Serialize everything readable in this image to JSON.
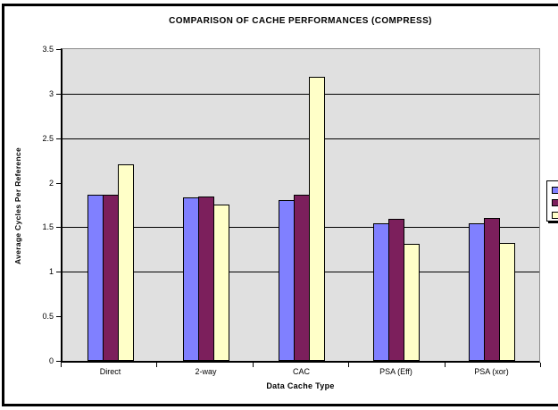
{
  "chart_data": {
    "type": "bar",
    "title": "COMPARISON OF CACHE PERFORMANCES (COMPRESS)",
    "xlabel": "Data Cache Type",
    "ylabel": "Average Cycles Per Reference",
    "categories": [
      "Direct",
      "2-way",
      "CAC",
      "PSA (Eff)",
      "PSA (xor)"
    ],
    "series": [
      {
        "name": "",
        "color": "#8080ff",
        "values": [
          1.87,
          1.84,
          1.81,
          1.54,
          1.54
        ]
      },
      {
        "name": "",
        "color": "#7c1f5c",
        "values": [
          1.87,
          1.85,
          1.87,
          1.59,
          1.6
        ]
      },
      {
        "name": "",
        "color": "#ffffc8",
        "values": [
          2.21,
          1.76,
          3.19,
          1.31,
          1.32
        ]
      }
    ],
    "ylim": [
      0,
      3.5
    ],
    "yticks": [
      0,
      0.5,
      1,
      1.5,
      2,
      2.5,
      3,
      3.5
    ],
    "ytick_labels": [
      "0",
      "0.5",
      "1",
      "1.5",
      "2",
      "2.5",
      "3",
      "3.5"
    ],
    "gridlines_y": [
      1.0,
      1.5,
      2.5,
      3.0
    ],
    "plot_background": "#e0e0e0",
    "legend": {
      "position": "right",
      "labels_cut_off": true,
      "swatch_colors": [
        "#8080ff",
        "#7c1f5c",
        "#ffffc8"
      ]
    }
  }
}
